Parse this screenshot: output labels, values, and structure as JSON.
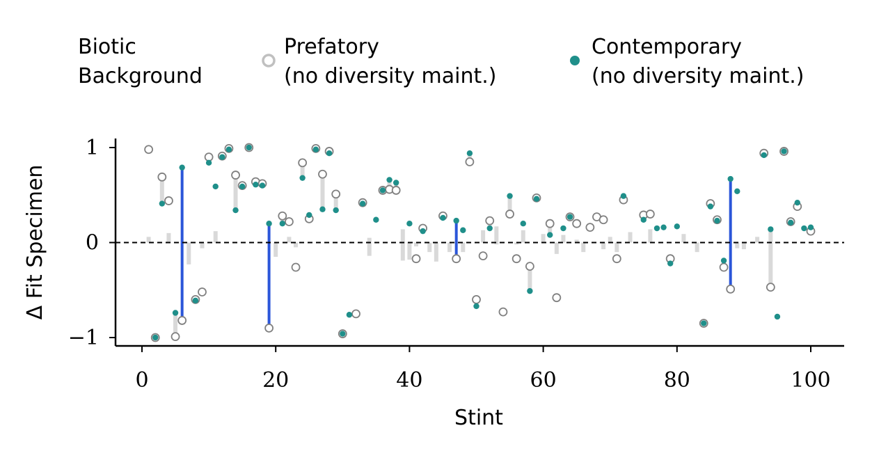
{
  "legend": {
    "title_line1": "Biotic",
    "title_line2": "Background",
    "prefatory_line1": "Prefatory",
    "prefatory_line2": "(no diversity maint.)",
    "contemporary_line1": "Contemporary",
    "contemporary_line2": "(no diversity maint.)"
  },
  "colors": {
    "prefatory_edge": "#808080",
    "contemporary_fill": "#1f8f8a",
    "gap_normal": "#d9d9d9",
    "gap_highlight": "#2b56d9",
    "axis": "#000000"
  },
  "chart_data": {
    "type": "scatter",
    "xlabel": "Stint",
    "ylabel": "Δ Fit Specimen",
    "xlim": [
      -4,
      105
    ],
    "ylim": [
      -1.1,
      1.1
    ],
    "xticks": [
      0,
      20,
      40,
      60,
      80,
      100
    ],
    "yticks": [
      -1,
      0,
      1
    ],
    "ytick_labels": [
      "−1",
      "0",
      "1"
    ],
    "reference_line_y": 0,
    "grid": false,
    "highlight_stints": [
      6,
      19,
      47,
      88
    ],
    "series": [
      {
        "name": "Prefatory",
        "points": [
          [
            1,
            0.98
          ],
          [
            2,
            -1.0
          ],
          [
            3,
            0.69
          ],
          [
            4,
            0.44
          ],
          [
            5,
            -0.99
          ],
          [
            6,
            -0.82
          ],
          [
            8,
            -0.6
          ],
          [
            9,
            -0.52
          ],
          [
            10,
            0.9
          ],
          [
            12,
            0.91
          ],
          [
            13,
            0.99
          ],
          [
            14,
            0.71
          ],
          [
            15,
            0.6
          ],
          [
            16,
            1.0
          ],
          [
            17,
            0.64
          ],
          [
            18,
            0.62
          ],
          [
            19,
            -0.9
          ],
          [
            21,
            0.28
          ],
          [
            22,
            0.22
          ],
          [
            23,
            -0.26
          ],
          [
            24,
            0.84
          ],
          [
            25,
            0.25
          ],
          [
            26,
            0.99
          ],
          [
            27,
            0.72
          ],
          [
            28,
            0.96
          ],
          [
            29,
            0.51
          ],
          [
            30,
            -0.96
          ],
          [
            32,
            -0.75
          ],
          [
            33,
            0.42
          ],
          [
            36,
            0.55
          ],
          [
            37,
            0.56
          ],
          [
            38,
            0.55
          ],
          [
            41,
            -0.17
          ],
          [
            42,
            0.15
          ],
          [
            45,
            0.28
          ],
          [
            47,
            -0.17
          ],
          [
            49,
            0.85
          ],
          [
            50,
            -0.6
          ],
          [
            51,
            -0.14
          ],
          [
            52,
            0.23
          ],
          [
            54,
            -0.73
          ],
          [
            55,
            0.3
          ],
          [
            56,
            -0.17
          ],
          [
            58,
            -0.25
          ],
          [
            59,
            0.47
          ],
          [
            61,
            0.2
          ],
          [
            62,
            -0.58
          ],
          [
            64,
            0.27
          ],
          [
            65,
            0.2
          ],
          [
            67,
            0.16
          ],
          [
            68,
            0.27
          ],
          [
            69,
            0.24
          ],
          [
            71,
            -0.17
          ],
          [
            72,
            0.45
          ],
          [
            75,
            0.29
          ],
          [
            76,
            0.3
          ],
          [
            79,
            -0.17
          ],
          [
            84,
            -0.85
          ],
          [
            85,
            0.41
          ],
          [
            86,
            0.24
          ],
          [
            87,
            -0.26
          ],
          [
            88,
            -0.49
          ],
          [
            93,
            0.94
          ],
          [
            94,
            -0.47
          ],
          [
            96,
            0.96
          ],
          [
            97,
            0.22
          ],
          [
            98,
            0.38
          ],
          [
            100,
            0.12
          ]
        ]
      },
      {
        "name": "Contemporary",
        "points": [
          [
            2,
            -1.0
          ],
          [
            3,
            0.41
          ],
          [
            5,
            -0.74
          ],
          [
            6,
            0.79
          ],
          [
            8,
            -0.61
          ],
          [
            10,
            0.84
          ],
          [
            11,
            0.59
          ],
          [
            12,
            0.9
          ],
          [
            13,
            0.98
          ],
          [
            14,
            0.34
          ],
          [
            15,
            0.59
          ],
          [
            16,
            1.0
          ],
          [
            17,
            0.61
          ],
          [
            18,
            0.6
          ],
          [
            19,
            0.2
          ],
          [
            21,
            0.2
          ],
          [
            24,
            0.68
          ],
          [
            25,
            0.29
          ],
          [
            26,
            0.98
          ],
          [
            27,
            0.35
          ],
          [
            28,
            0.94
          ],
          [
            29,
            0.34
          ],
          [
            30,
            -0.96
          ],
          [
            31,
            -0.76
          ],
          [
            33,
            0.41
          ],
          [
            35,
            0.24
          ],
          [
            36,
            0.55
          ],
          [
            37,
            0.66
          ],
          [
            38,
            0.63
          ],
          [
            40,
            0.2
          ],
          [
            42,
            0.12
          ],
          [
            45,
            0.26
          ],
          [
            47,
            0.23
          ],
          [
            48,
            0.13
          ],
          [
            49,
            0.94
          ],
          [
            50,
            -0.67
          ],
          [
            52,
            0.15
          ],
          [
            55,
            0.49
          ],
          [
            57,
            0.2
          ],
          [
            58,
            -0.51
          ],
          [
            59,
            0.46
          ],
          [
            61,
            0.08
          ],
          [
            63,
            0.15
          ],
          [
            64,
            0.27
          ],
          [
            72,
            0.49
          ],
          [
            75,
            0.24
          ],
          [
            77,
            0.15
          ],
          [
            78,
            0.16
          ],
          [
            79,
            -0.22
          ],
          [
            80,
            0.17
          ],
          [
            84,
            -0.85
          ],
          [
            85,
            0.38
          ],
          [
            86,
            0.23
          ],
          [
            87,
            -0.19
          ],
          [
            88,
            0.67
          ],
          [
            89,
            0.54
          ],
          [
            93,
            0.92
          ],
          [
            94,
            0.14
          ],
          [
            95,
            -0.78
          ],
          [
            96,
            0.96
          ],
          [
            97,
            0.21
          ],
          [
            98,
            0.42
          ],
          [
            99,
            0.15
          ],
          [
            100,
            0.16
          ]
        ]
      },
      {
        "name": "",
        "points": [
          [
            1,
            0.06
          ],
          [
            4,
            0.1
          ],
          [
            7,
            -0.23
          ],
          [
            9,
            -0.06
          ],
          [
            11,
            0.12
          ],
          [
            20,
            -0.15
          ],
          [
            22,
            0.06
          ],
          [
            23,
            -0.05
          ],
          [
            34,
            -0.14
          ],
          [
            34,
            0.05
          ],
          [
            39,
            -0.19
          ],
          [
            39,
            0.14
          ],
          [
            40,
            -0.18
          ],
          [
            41,
            -0.04
          ],
          [
            43,
            -0.1
          ],
          [
            44,
            -0.2
          ],
          [
            46,
            -0.1
          ],
          [
            48,
            -0.1
          ],
          [
            51,
            0.13
          ],
          [
            53,
            -0.02
          ],
          [
            53,
            0.17
          ],
          [
            56,
            -0.02
          ],
          [
            57,
            0.13
          ],
          [
            60,
            0.09
          ],
          [
            62,
            -0.12
          ],
          [
            63,
            0.08
          ],
          [
            65,
            0.03
          ],
          [
            66,
            -0.1
          ],
          [
            67,
            0.0
          ],
          [
            69,
            -0.07
          ],
          [
            70,
            0.06
          ],
          [
            71,
            -0.1
          ],
          [
            73,
            0.11
          ],
          [
            76,
            0.14
          ],
          [
            81,
            0.09
          ],
          [
            83,
            -0.1
          ],
          [
            84,
            0.0
          ],
          [
            89,
            -0.06
          ],
          [
            90,
            -0.07
          ],
          [
            92,
            0.06
          ]
        ]
      }
    ]
  }
}
